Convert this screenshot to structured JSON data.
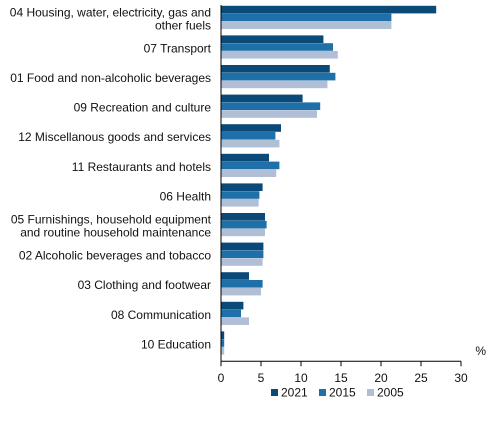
{
  "chart_data": {
    "type": "bar",
    "orientation": "horizontal",
    "categories": [
      [
        "04 Housing, water, electricity, gas and",
        "other fuels"
      ],
      [
        "07 Transport"
      ],
      [
        "01 Food and non-alcoholic beverages"
      ],
      [
        "09 Recreation and culture"
      ],
      [
        "12 Miscellanous goods and services"
      ],
      [
        "11 Restaurants and hotels"
      ],
      [
        "06 Health"
      ],
      [
        "05 Furnishings, household equipment",
        "and routine household maintenance"
      ],
      [
        "02 Alcoholic beverages and tobacco"
      ],
      [
        "03 Clothing and footwear"
      ],
      [
        "08 Communication"
      ],
      [
        "10 Education"
      ]
    ],
    "series": [
      {
        "name": "2021",
        "color": "#0b4a78",
        "values": [
          26.9,
          12.8,
          13.6,
          10.2,
          7.5,
          6.0,
          5.2,
          5.5,
          5.3,
          3.5,
          2.8,
          0.4
        ]
      },
      {
        "name": "2015",
        "color": "#1f6fa8",
        "values": [
          21.3,
          14.0,
          14.3,
          12.4,
          6.8,
          7.3,
          4.8,
          5.7,
          5.3,
          5.2,
          2.5,
          0.4
        ]
      },
      {
        "name": "2005",
        "color": "#b0bed6",
        "values": [
          21.3,
          14.6,
          13.3,
          12.0,
          7.3,
          6.9,
          4.7,
          5.5,
          5.2,
          5.0,
          3.5,
          0.4
        ]
      }
    ],
    "x_ticks": [
      "0",
      "5",
      "10",
      "15",
      "20",
      "25",
      "30"
    ],
    "xlim": [
      0,
      30
    ],
    "unit_label": "%",
    "grid": false,
    "legend_position": "bottom"
  }
}
